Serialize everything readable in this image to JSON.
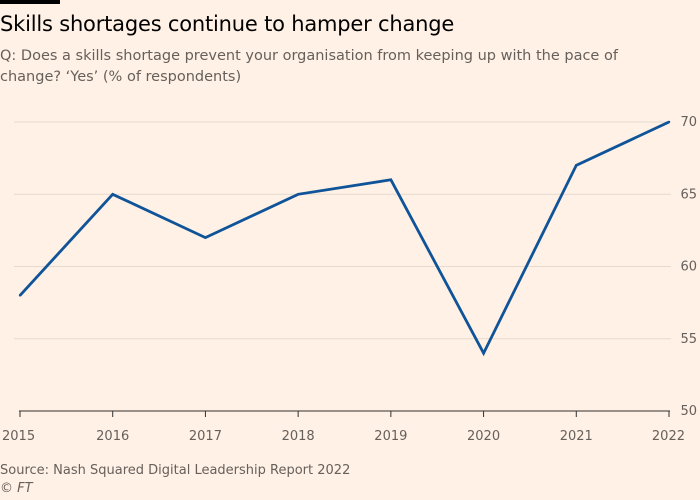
{
  "header": {
    "title": "Skills shortages continue to hamper change",
    "subtitle": "Q: Does a skills shortage prevent your organisation from keeping up with the pace of change? ‘Yes’ (% of respondents)"
  },
  "footer": {
    "source": "Source: Nash Squared Digital Leadership Report 2022",
    "credit": "© FT"
  },
  "colors": {
    "background": "#fff1e5",
    "line": "#0f5499",
    "grid": "#e6d9ce",
    "text": "#66605c"
  },
  "chart_data": {
    "type": "line",
    "title": "Skills shortages continue to hamper change",
    "subtitle": "Q: Does a skills shortage prevent your organisation from keeping up with the pace of change? ‘Yes’ (% of respondents)",
    "x": [
      "2015",
      "2016",
      "2017",
      "2018",
      "2019",
      "2020",
      "2021",
      "2022"
    ],
    "series": [
      {
        "values": [
          58,
          65,
          62,
          65,
          66,
          54,
          67,
          70
        ]
      }
    ],
    "xlabel": "",
    "ylabel": "",
    "ylim": [
      50,
      70
    ],
    "yticks": [
      50,
      55,
      60,
      65,
      70
    ],
    "y_axis_side": "right",
    "grid": true,
    "legend": "none"
  }
}
